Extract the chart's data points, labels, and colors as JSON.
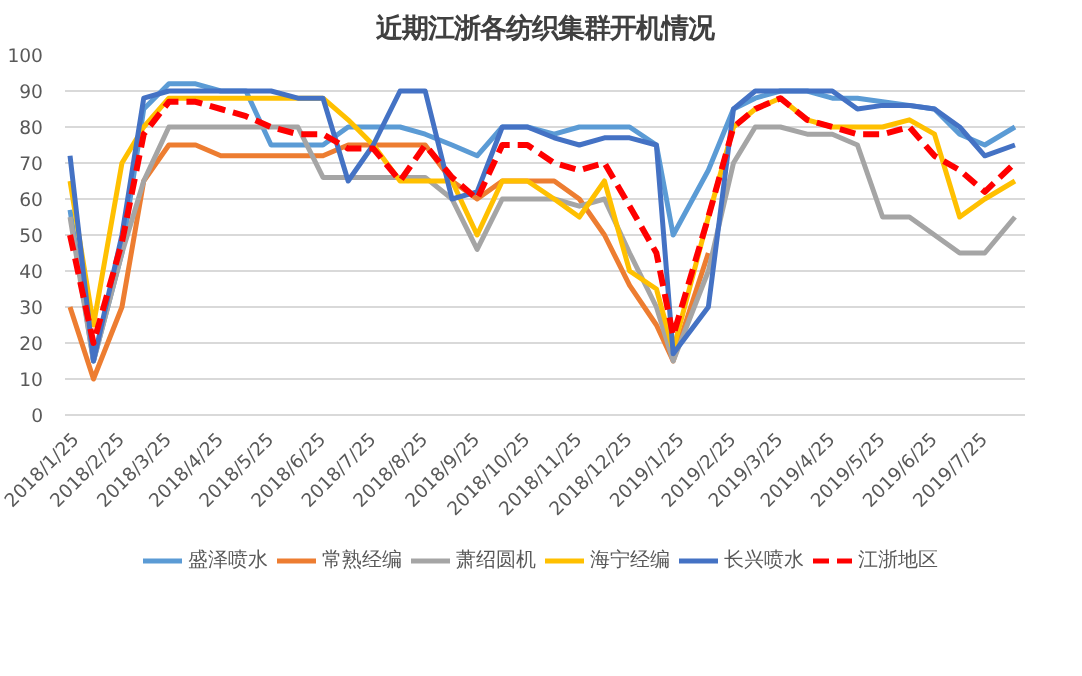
{
  "chart_data": {
    "type": "line",
    "title": "近期江浙各纺织集群开机情况",
    "x": [
      "2018-01-25",
      "2018-02-08",
      "2018-02-25",
      "2018-03-10",
      "2018-03-25",
      "2018-04-10",
      "2018-04-25",
      "2018-05-10",
      "2018-05-25",
      "2018-06-10",
      "2018-06-25",
      "2018-07-10",
      "2018-07-25",
      "2018-08-10",
      "2018-08-25",
      "2018-09-10",
      "2018-09-25",
      "2018-10-10",
      "2018-10-25",
      "2018-11-10",
      "2018-11-25",
      "2018-12-10",
      "2018-12-25",
      "2019-01-10",
      "2019-01-20",
      "2019-02-10",
      "2019-02-25",
      "2019-03-10",
      "2019-03-25",
      "2019-04-10",
      "2019-04-25",
      "2019-05-10",
      "2019-05-25",
      "2019-06-10",
      "2019-06-25",
      "2019-07-10",
      "2019-07-25",
      "2019-08-12"
    ],
    "series": [
      {
        "name": "盛泽喷水",
        "color": "#5b9bd5",
        "line_style": "solid",
        "values": [
          57,
          15,
          45,
          85,
          92,
          92,
          90,
          90,
          75,
          75,
          75,
          80,
          80,
          80,
          78,
          75,
          72,
          80,
          80,
          78,
          80,
          80,
          80,
          75,
          50,
          68,
          85,
          88,
          90,
          90,
          88,
          88,
          87,
          86,
          85,
          78,
          75,
          80
        ]
      },
      {
        "name": "常熟经编",
        "color": "#ed7d31",
        "line_style": "solid",
        "values": [
          30,
          10,
          30,
          65,
          75,
          75,
          72,
          72,
          72,
          72,
          72,
          75,
          75,
          75,
          75,
          65,
          60,
          65,
          65,
          65,
          60,
          50,
          36,
          25,
          15,
          45,
          null,
          null,
          null,
          null,
          null,
          null,
          null,
          null,
          null,
          null,
          null,
          null
        ]
      },
      {
        "name": "萧绍圆机",
        "color": "#a5a5a5",
        "line_style": "solid",
        "values": [
          55,
          15,
          45,
          65,
          80,
          80,
          80,
          80,
          80,
          80,
          66,
          66,
          66,
          66,
          66,
          60,
          46,
          60,
          60,
          60,
          58,
          60,
          45,
          30,
          15,
          40,
          70,
          80,
          80,
          78,
          78,
          75,
          55,
          55,
          50,
          45,
          45,
          55
        ]
      },
      {
        "name": "海宁经编",
        "color": "#ffc000",
        "line_style": "solid",
        "values": [
          65,
          25,
          70,
          80,
          88,
          88,
          88,
          88,
          88,
          88,
          88,
          82,
          75,
          65,
          65,
          65,
          50,
          65,
          65,
          60,
          55,
          65,
          40,
          35,
          18,
          55,
          80,
          85,
          88,
          82,
          80,
          80,
          80,
          82,
          78,
          55,
          60,
          65
        ]
      },
      {
        "name": "长兴喷水",
        "color": "#4472c4",
        "line_style": "solid",
        "values": [
          72,
          15,
          50,
          88,
          90,
          90,
          90,
          90,
          90,
          88,
          88,
          65,
          75,
          90,
          90,
          60,
          62,
          80,
          80,
          77,
          75,
          77,
          77,
          75,
          17,
          30,
          85,
          90,
          90,
          90,
          90,
          85,
          86,
          86,
          85,
          80,
          72,
          75
        ]
      },
      {
        "name": "江浙地区",
        "color": "#ff0000",
        "line_style": "dashed",
        "values": [
          50,
          20,
          48,
          78,
          87,
          87,
          85,
          83,
          80,
          78,
          78,
          74,
          74,
          65,
          75,
          66,
          60,
          75,
          75,
          70,
          68,
          70,
          58,
          45,
          22,
          55,
          80,
          85,
          88,
          82,
          80,
          78,
          78,
          80,
          72,
          68,
          62,
          70
        ]
      }
    ],
    "xlim": [
      "2018-01-22",
      "2019-08-18"
    ],
    "xticks": [
      {
        "value": "2018-01-25",
        "label": "2018/1/25"
      },
      {
        "value": "2018-02-25",
        "label": "2018/2/25"
      },
      {
        "value": "2018-03-25",
        "label": "2018/3/25"
      },
      {
        "value": "2018-04-25",
        "label": "2018/4/25"
      },
      {
        "value": "2018-05-25",
        "label": "2018/5/25"
      },
      {
        "value": "2018-06-25",
        "label": "2018/6/25"
      },
      {
        "value": "2018-07-25",
        "label": "2018/7/25"
      },
      {
        "value": "2018-08-25",
        "label": "2018/8/25"
      },
      {
        "value": "2018-09-25",
        "label": "2018/9/25"
      },
      {
        "value": "2018-10-25",
        "label": "2018/10/25"
      },
      {
        "value": "2018-11-25",
        "label": "2018/11/25"
      },
      {
        "value": "2018-12-25",
        "label": "2018/12/25"
      },
      {
        "value": "2019-01-25",
        "label": "2019/1/25"
      },
      {
        "value": "2019-02-25",
        "label": "2019/2/25"
      },
      {
        "value": "2019-03-25",
        "label": "2019/3/25"
      },
      {
        "value": "2019-04-25",
        "label": "2019/4/25"
      },
      {
        "value": "2019-05-25",
        "label": "2019/5/25"
      },
      {
        "value": "2019-06-25",
        "label": "2019/6/25"
      },
      {
        "value": "2019-07-25",
        "label": "2019/7/25"
      }
    ],
    "ylim": [
      0,
      100
    ],
    "yticks": [
      0,
      10,
      20,
      30,
      40,
      50,
      60,
      70,
      80,
      90,
      100
    ],
    "grid": "y",
    "legend": "bottom",
    "marker": "none"
  }
}
